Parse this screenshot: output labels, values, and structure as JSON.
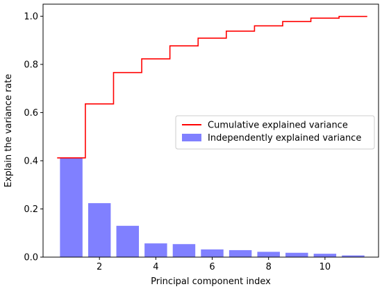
{
  "chart_data": {
    "type": "bar",
    "xlabel": "Principal component index",
    "ylabel": "Explain the variance rate",
    "xlim": [
      0.0,
      11.9
    ],
    "ylim": [
      0.0,
      1.05
    ],
    "x_ticks": [
      2,
      4,
      6,
      8,
      10
    ],
    "y_ticks": [
      0.0,
      0.2,
      0.4,
      0.6,
      0.8,
      1.0
    ],
    "x_tick_labels": [
      "2",
      "4",
      "6",
      "8",
      "10"
    ],
    "y_tick_labels": [
      "0.0",
      "0.2",
      "0.4",
      "0.6",
      "0.8",
      "1.0"
    ],
    "categories": [
      1,
      2,
      3,
      4,
      5,
      6,
      7,
      8,
      9,
      10,
      11
    ],
    "series": [
      {
        "name": "Independently explained variance",
        "type": "bar",
        "color": "#8080ff",
        "values": [
          0.412,
          0.224,
          0.13,
          0.057,
          0.054,
          0.032,
          0.029,
          0.022,
          0.018,
          0.014,
          0.007
        ]
      },
      {
        "name": "Cumulative explained variance",
        "type": "step",
        "color": "#ff0000",
        "values": [
          0.412,
          0.636,
          0.766,
          0.823,
          0.877,
          0.909,
          0.938,
          0.96,
          0.978,
          0.992,
          0.999
        ]
      }
    ],
    "legend": {
      "placement": "center-right"
    },
    "grid": false
  }
}
